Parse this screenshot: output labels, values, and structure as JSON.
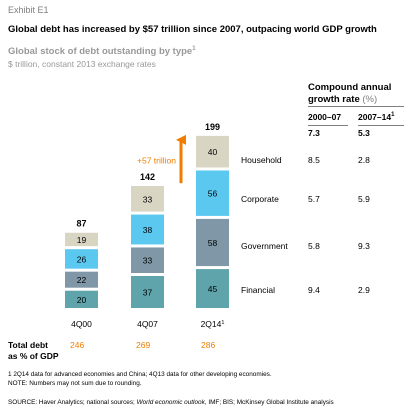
{
  "exhibit": "Exhibit E1",
  "title": "Global debt has increased by $57 trillion since 2007, outpacing world GDP growth",
  "subtitle": "Global stock of debt outstanding by type",
  "subtitle_note": "1",
  "units": "$ trillion, constant 2013 exchange rates",
  "increase_label": "+57 trillion",
  "cagr": {
    "title_line1": "Compound annual",
    "title_line2": "growth rate",
    "title_unit": "(%)",
    "col1": "2000–07",
    "col2": "2007–14",
    "col2_note": "1",
    "total": [
      "7.3",
      "5.3"
    ],
    "rows": [
      {
        "label": "Household",
        "v1": "8.5",
        "v2": "2.8"
      },
      {
        "label": "Corporate",
        "v1": "5.7",
        "v2": "5.9"
      },
      {
        "label": "Government",
        "v1": "5.8",
        "v2": "9.3"
      },
      {
        "label": "Financial",
        "v1": "9.4",
        "v2": "2.9"
      }
    ]
  },
  "total_debt_label_line1": "Total debt",
  "total_debt_label_line2": "as % of GDP",
  "gdp_pct": [
    "246",
    "269",
    "286"
  ],
  "footnotes": {
    "note1": "1  2Q14 data for advanced economies and China; 4Q13 data for other developing economies.",
    "note2": "NOTE: Numbers may not sum due to rounding."
  },
  "source": {
    "prefix": "SOURCE:  Haver Analytics; national sources; ",
    "italic": "World economic outlook",
    "suffix": ", IMF; BIS; McKinsey Global Institute analysis"
  },
  "colors": {
    "financial": "#5fa4ab",
    "government": "#7f97a6",
    "corporate": "#5bc8f0",
    "household": "#d9d5c3",
    "arrow": "#f07d00",
    "gdp_text": "#f07d00"
  },
  "chart_data": {
    "type": "bar",
    "stacked": true,
    "categories": [
      "4Q00",
      "4Q07",
      "2Q14"
    ],
    "category_notes": [
      "",
      "",
      "1"
    ],
    "series": [
      {
        "name": "Financial",
        "values": [
          20,
          37,
          45
        ]
      },
      {
        "name": "Government",
        "values": [
          22,
          33,
          58
        ]
      },
      {
        "name": "Corporate",
        "values": [
          26,
          38,
          56
        ]
      },
      {
        "name": "Household",
        "values": [
          19,
          33,
          40
        ]
      }
    ],
    "totals": [
      87,
      142,
      199
    ],
    "ylim": [
      0,
      200
    ],
    "grid": false,
    "legend": "right"
  }
}
